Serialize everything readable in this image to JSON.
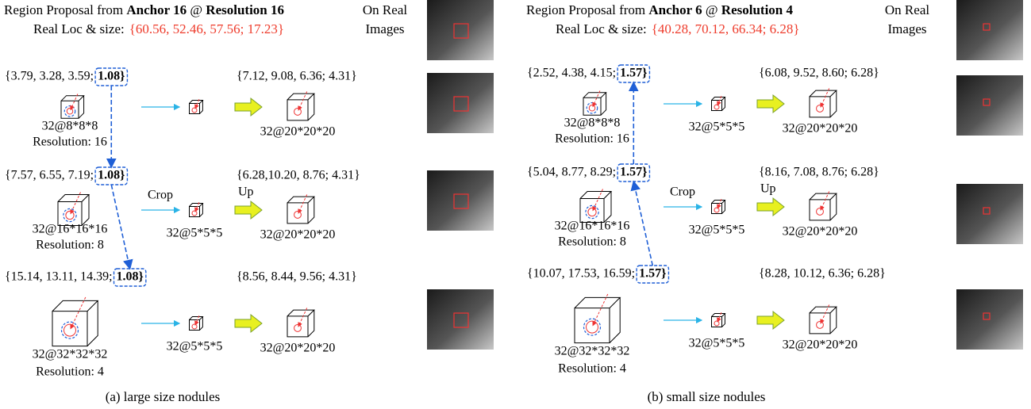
{
  "panels": [
    {
      "title_parts": [
        {
          "text": "Region Proposal from ",
          "bold": false
        },
        {
          "text": "Anchor 16",
          "bold": true
        },
        {
          "text": " @ ",
          "bold": false
        },
        {
          "text": "Resolution 16",
          "bold": true
        }
      ],
      "real_label": "Real Loc & size:",
      "real_value": "{60.56, 52.46, 57.56; 17.23}",
      "images_label": [
        "On Real",
        "Images"
      ],
      "rows": [
        {
          "input": "{3.79, 3.28, 3.59;",
          "scale": "1.08}",
          "scale_color": "#f26b43",
          "size": "32@8*8*8",
          "resolution": "Resolution: 16",
          "output": "{7.12, 9.08, 6.36; 4.31}",
          "output_size": "32@20*20*20"
        },
        {
          "input": "{7.57, 6.55, 7.19;",
          "scale": "1.08}",
          "scale_color": "#000000",
          "size": "32@16*16*16",
          "resolution": "Resolution: 8",
          "crop": "Crop",
          "up": "Up",
          "middle": "32@5*5*5",
          "output": "{6.28,10.20, 8.76; 4.31}",
          "output_size": "32@20*20*20"
        },
        {
          "input": "{15.14, 13.11, 14.39;",
          "scale": "1.08}",
          "scale_color": "#000000",
          "size": "32@32*32*32",
          "resolution": "Resolution: 4",
          "middle": "32@5*5*5",
          "output": "{8.56, 8.44, 9.56; 4.31}",
          "output_size": "32@20*20*20"
        }
      ],
      "caption": "(a) large size nodules"
    },
    {
      "title_parts": [
        {
          "text": "Region Proposal from ",
          "bold": false
        },
        {
          "text": "Anchor 6",
          "bold": true
        },
        {
          "text": " @ ",
          "bold": false
        },
        {
          "text": "Resolution 4",
          "bold": true
        }
      ],
      "real_label": "Real Loc & size:",
      "real_value": "{40.28, 70.12, 66.34; 6.28}",
      "images_label": [
        "On Real",
        "Images"
      ],
      "rows": [
        {
          "input": "{2.52, 4.38, 4.15;",
          "scale": "1.57}",
          "scale_color": "#000000",
          "size": "32@8*8*8",
          "resolution": "Resolution: 16",
          "middle": "32@5*5*5",
          "output": "{6.08, 9.52, 8.60; 6.28}",
          "output_size": "32@20*20*20"
        },
        {
          "input": "{5.04, 8.77, 8.29;",
          "scale": "1.57}",
          "scale_color": "#000000",
          "size": "32@16*16*16",
          "resolution": "Resolution: 8",
          "crop": "Crop",
          "up": "Up",
          "middle": "32@5*5*5",
          "output": "{8.16, 7.08, 8.76; 6.28}",
          "output_size": "32@20*20*20"
        },
        {
          "input": "{10.07, 17.53, 16.59;",
          "scale": "1.57}",
          "scale_color": "#f26b43",
          "size": "32@32*32*32",
          "resolution": "Resolution: 4",
          "middle": "32@5*5*5",
          "output": "{8.28, 10.12, 6.36; 6.28}",
          "output_size": "32@20*20*20"
        }
      ],
      "caption": "(b) small size nodules"
    }
  ]
}
